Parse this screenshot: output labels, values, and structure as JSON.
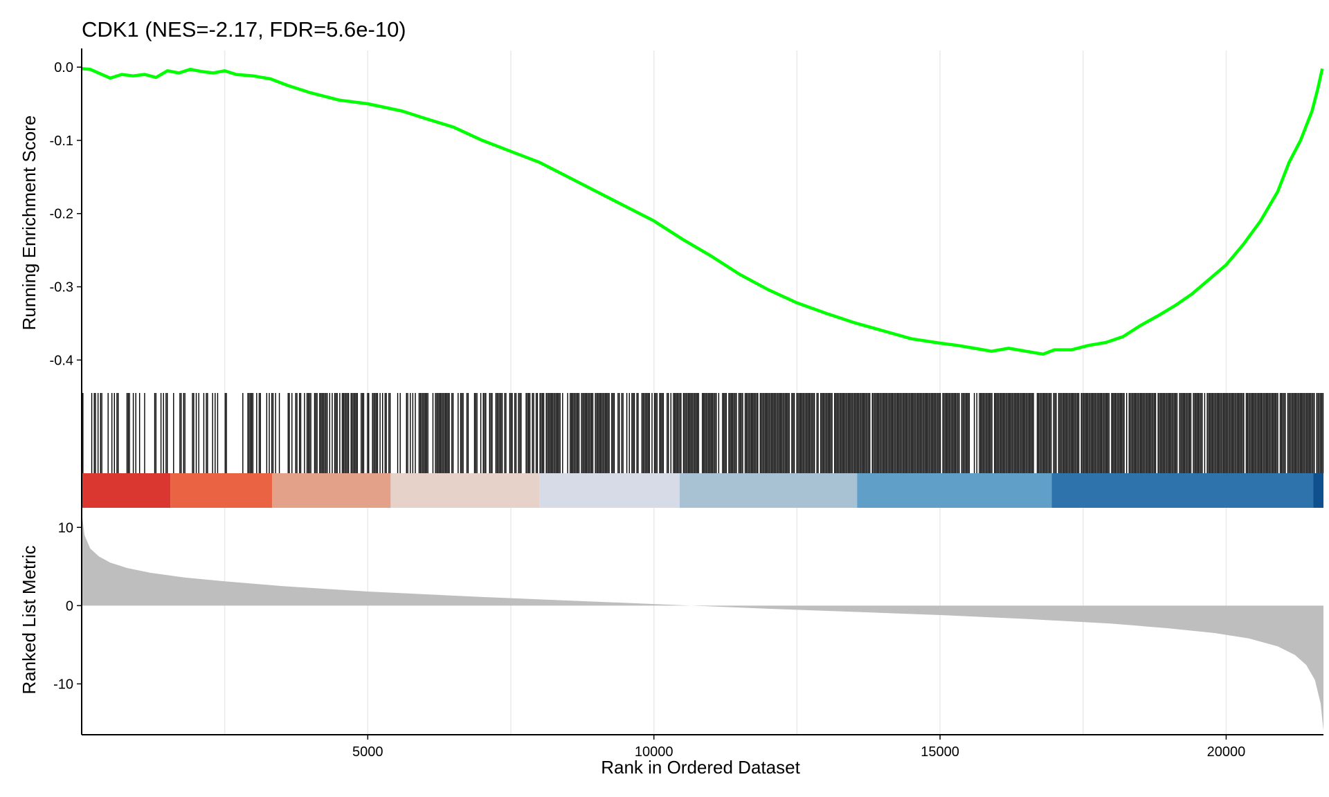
{
  "chart_data": {
    "type": "line",
    "title": "CDK1 (NES=-2.17, FDR=5.6e-10)",
    "xlabel": "Rank in Ordered Dataset",
    "xlim": [
      1,
      21700
    ],
    "x_ticks": [
      5000,
      10000,
      15000,
      20000
    ],
    "grid": "vertical",
    "colors": {
      "running_es_line": "#00ff00",
      "hit_marks": "#000000",
      "ranked_metric_fill": "#bebebe",
      "grid": "#ebebeb"
    },
    "panels": {
      "running_es": {
        "ylabel": "Running Enrichment Score",
        "ylim": [
          -0.445,
          0.018
        ],
        "y_ticks": [
          0.0,
          -0.1,
          -0.2,
          -0.3,
          -0.4
        ],
        "y_tick_labels": [
          "0.0",
          "-0.1",
          "-0.2",
          "-0.3",
          "-0.4"
        ],
        "series": [
          {
            "x": [
              1,
              150,
              500,
              700,
              900,
              1100,
              1300,
              1500,
              1700,
              1900,
              2100,
              2300,
              2500,
              2700,
              3000,
              3300,
              3600,
              4000,
              4500,
              5000,
              5600,
              6000,
              6500,
              7000,
              7500,
              8000,
              8500,
              9000,
              9500,
              10000,
              10500,
              11000,
              11500,
              12000,
              12500,
              13000,
              13500,
              14000,
              14500,
              15000,
              15300,
              15600,
              15900,
              16200,
              16500,
              16800,
              17000,
              17300,
              17600,
              17900,
              18200,
              18500,
              18800,
              19100,
              19400,
              19700,
              20000,
              20300,
              20600,
              20900,
              21100,
              21300,
              21500,
              21600,
              21680
            ],
            "y": [
              -0.002,
              -0.003,
              -0.015,
              -0.01,
              -0.012,
              -0.01,
              -0.014,
              -0.005,
              -0.008,
              -0.003,
              -0.006,
              -0.008,
              -0.005,
              -0.01,
              -0.012,
              -0.016,
              -0.025,
              -0.035,
              -0.045,
              -0.05,
              -0.06,
              -0.07,
              -0.082,
              -0.1,
              -0.115,
              -0.13,
              -0.15,
              -0.17,
              -0.19,
              -0.21,
              -0.235,
              -0.258,
              -0.283,
              -0.304,
              -0.322,
              -0.336,
              -0.349,
              -0.36,
              -0.371,
              -0.377,
              -0.38,
              -0.384,
              -0.388,
              -0.384,
              -0.388,
              -0.392,
              -0.386,
              -0.386,
              -0.38,
              -0.376,
              -0.368,
              -0.353,
              -0.34,
              -0.326,
              -0.31,
              -0.29,
              -0.27,
              -0.242,
              -0.21,
              -0.17,
              -0.13,
              -0.1,
              -0.06,
              -0.03,
              -0.002
            ]
          }
        ]
      },
      "hits": {
        "description_density": [
          0.35,
          0.6,
          0.75,
          0.85,
          0.9,
          0.95
        ]
      },
      "color_bar": {
        "segments": [
          {
            "from": 1,
            "to": 1550,
            "color": "#d9372f"
          },
          {
            "from": 1550,
            "to": 3330,
            "color": "#ea6444"
          },
          {
            "from": 3330,
            "to": 5400,
            "color": "#e3a189"
          },
          {
            "from": 5400,
            "to": 8000,
            "color": "#e6d2c9"
          },
          {
            "from": 8000,
            "to": 10450,
            "color": "#d7dbe7"
          },
          {
            "from": 10450,
            "to": 13550,
            "color": "#a8c1d3"
          },
          {
            "from": 13550,
            "to": 16950,
            "color": "#5f9fc8"
          },
          {
            "from": 16950,
            "to": 21520,
            "color": "#2e73ab"
          },
          {
            "from": 21520,
            "to": 21700,
            "color": "#10508f"
          }
        ]
      },
      "ranked_metric": {
        "ylabel": "Ranked List Metric",
        "ylim": [
          -16.5,
          12.5
        ],
        "y_ticks": [
          10,
          0,
          -10
        ],
        "y_tick_labels": [
          "10",
          "0",
          "-10"
        ],
        "series": [
          {
            "x": [
              1,
              50,
              150,
              300,
              500,
              800,
              1200,
              1800,
              2500,
              3500,
              5000,
              7000,
              9000,
              10000,
              11000,
              12000,
              13500,
              15000,
              16500,
              18000,
              19000,
              19800,
              20400,
              20900,
              21200,
              21400,
              21550,
              21650,
              21700
            ],
            "y": [
              12,
              9,
              7.3,
              6.3,
              5.5,
              4.8,
              4.2,
              3.6,
              3.1,
              2.5,
              1.8,
              1.1,
              0.5,
              0.2,
              -0.1,
              -0.4,
              -0.8,
              -1.2,
              -1.7,
              -2.3,
              -2.9,
              -3.5,
              -4.2,
              -5.2,
              -6.3,
              -7.6,
              -9.5,
              -12.5,
              -16
            ]
          }
        ]
      }
    }
  }
}
